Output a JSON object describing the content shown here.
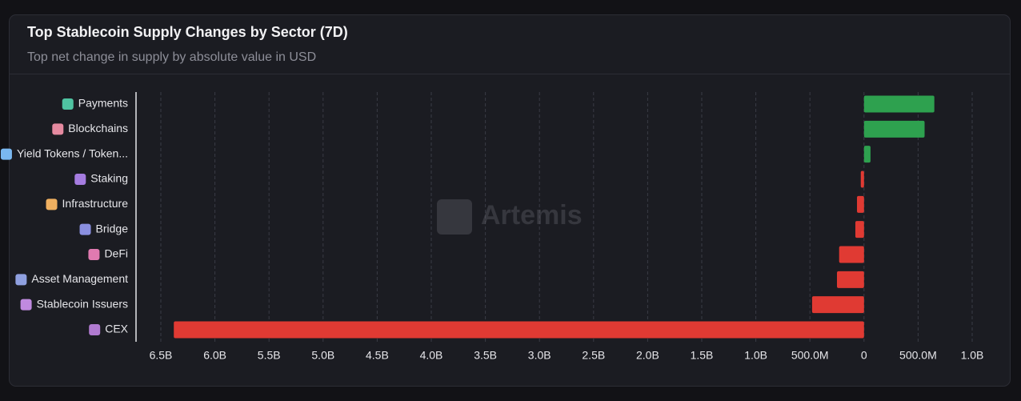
{
  "title": "Top Stablecoin Supply Changes by Sector (7D)",
  "subtitle": "Top net change in supply by absolute value in USD",
  "watermark": "Artemis",
  "chart_data": {
    "type": "hbar",
    "categories": [
      "Payments",
      "Blockchains",
      "Yield Tokens / Token...",
      "Staking",
      "Infrastructure",
      "Bridge",
      "DeFi",
      "Asset Management",
      "Stablecoin Issuers",
      "CEX"
    ],
    "values": [
      650000000,
      560000000,
      60000000,
      -30000000,
      -65000000,
      -80000000,
      -230000000,
      -250000000,
      -480000000,
      -6380000000
    ],
    "positive_color": "#2ea14f",
    "negative_color": "#e03a33",
    "xlim": [
      -6500000000,
      1000000000
    ],
    "xticks": [
      {
        "value": -6500000000,
        "label": "6.5B"
      },
      {
        "value": -6000000000,
        "label": "6.0B"
      },
      {
        "value": -5500000000,
        "label": "5.5B"
      },
      {
        "value": -5000000000,
        "label": "5.0B"
      },
      {
        "value": -4500000000,
        "label": "4.5B"
      },
      {
        "value": -4000000000,
        "label": "4.0B"
      },
      {
        "value": -3500000000,
        "label": "3.5B"
      },
      {
        "value": -3000000000,
        "label": "3.0B"
      },
      {
        "value": -2500000000,
        "label": "2.5B"
      },
      {
        "value": -2000000000,
        "label": "2.0B"
      },
      {
        "value": -1500000000,
        "label": "1.5B"
      },
      {
        "value": -1000000000,
        "label": "1.0B"
      },
      {
        "value": -500000000,
        "label": "500.0M"
      },
      0,
      {
        "value": 500000000,
        "label": "500.0M"
      },
      {
        "value": 1000000000,
        "label": "1.0B"
      }
    ],
    "grid": true
  }
}
